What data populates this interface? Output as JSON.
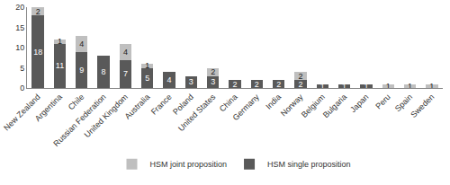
{
  "chart_data": {
    "type": "bar",
    "stacked": true,
    "data_labels": true,
    "legend": "bottom",
    "grid": false,
    "categories": [
      "New Zealand",
      "Argentina",
      "Chile",
      "Russian Federation",
      "United Kingdom",
      "Australia",
      "France",
      "Poland",
      "United States",
      "China",
      "Germany",
      "India",
      "Norway",
      "Belgium",
      "Bulgaria",
      "Japan",
      "Peru",
      "Spain",
      "Sweden"
    ],
    "series": [
      {
        "name": "HSM single proposition",
        "color": "#595959",
        "values": [
          18,
          11,
          9,
          8,
          7,
          5,
          4,
          3,
          3,
          2,
          2,
          2,
          2,
          1,
          1,
          1,
          0,
          0,
          0
        ]
      },
      {
        "name": "HSM joint proposition",
        "color": "#bfbfbf",
        "values": [
          2,
          1,
          4,
          0,
          4,
          1,
          0,
          0,
          2,
          0,
          0,
          0,
          2,
          0,
          0,
          0,
          1,
          1,
          1
        ]
      }
    ],
    "ylim": [
      0,
      20
    ],
    "yticks": [
      0,
      5,
      10,
      15,
      20
    ]
  }
}
